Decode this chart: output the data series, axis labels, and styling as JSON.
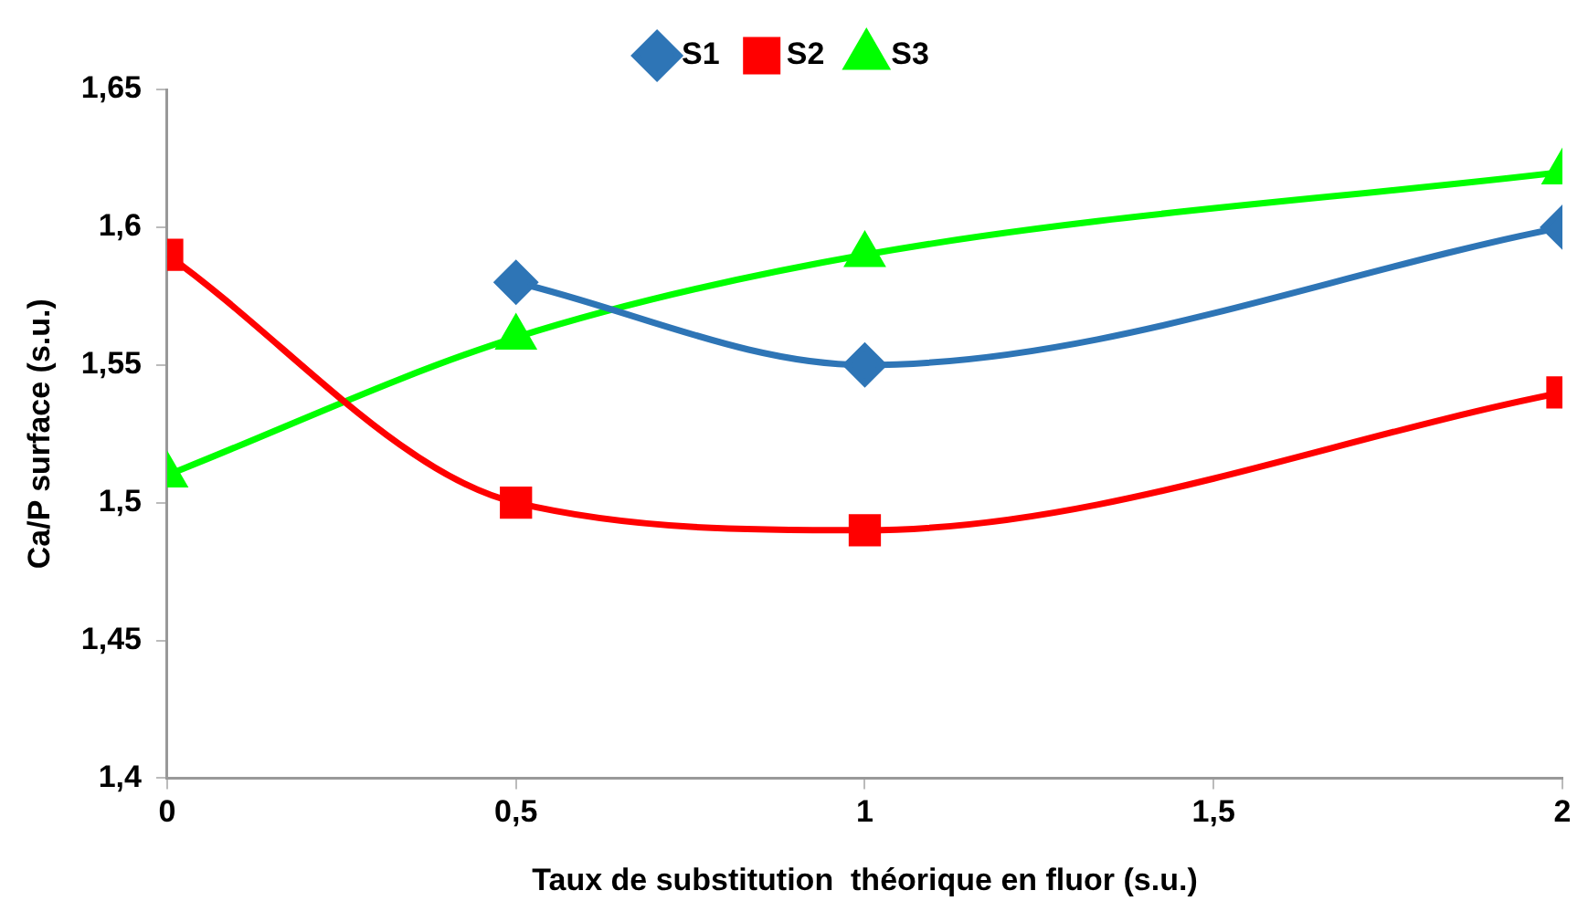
{
  "chart_data": {
    "type": "line",
    "xlabel": "Taux de substitution  théorique en fluor (s.u.)",
    "ylabel": "Ca/P surface (s.u.)",
    "xlim": [
      0,
      2
    ],
    "xticks": [
      0,
      {
        "value": 0.5,
        "label": "0,5"
      },
      1,
      {
        "value": 1.5,
        "label": "1,5"
      },
      2
    ],
    "ylim": [
      1.4,
      1.65
    ],
    "yticks": [
      {
        "value": 1.4,
        "label": "1,4"
      },
      {
        "value": 1.45,
        "label": "1,45"
      },
      {
        "value": 1.5,
        "label": "1,5"
      },
      {
        "value": 1.55,
        "label": "1,55"
      },
      {
        "value": 1.6,
        "label": "1,6"
      },
      {
        "value": 1.65,
        "label": "1,65"
      }
    ],
    "grid": false,
    "legend": "top",
    "line_style": "solid",
    "series": [
      {
        "name": "S1",
        "color": "#2e75b6",
        "marker": "diamond",
        "x": [
          0.5,
          1,
          2
        ],
        "values": [
          1.58,
          1.55,
          1.6
        ]
      },
      {
        "name": "S2",
        "color": "#ff0000",
        "marker": "square",
        "x": [
          0,
          0.5,
          1,
          2
        ],
        "values": [
          1.59,
          1.5,
          1.49,
          1.54
        ]
      },
      {
        "name": "S3",
        "color": "#00ff00",
        "marker": "triangle",
        "x": [
          0,
          0.5,
          1,
          2
        ],
        "values": [
          1.51,
          1.56,
          1.59,
          1.62
        ]
      }
    ]
  }
}
